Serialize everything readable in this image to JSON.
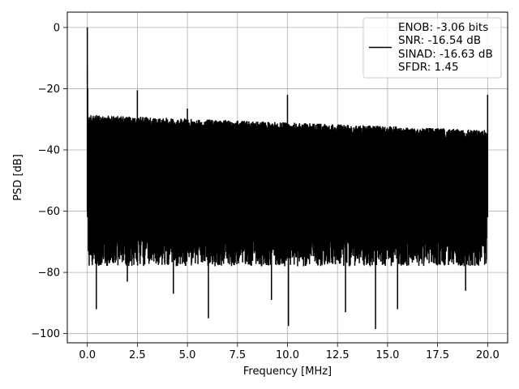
{
  "chart_data": {
    "type": "line",
    "xlabel": "Frequency [MHz]",
    "ylabel": "PSD [dB]",
    "xlim": [
      -1.0,
      21.0
    ],
    "ylim": [
      -103.0,
      5.0
    ],
    "grid": true,
    "legend_placement": "upper-right",
    "x_ticks": [
      0.0,
      2.5,
      5.0,
      7.5,
      10.0,
      12.5,
      15.0,
      17.5,
      20.0
    ],
    "x_tick_labels": [
      "0.0",
      "2.5",
      "5.0",
      "7.5",
      "10.0",
      "12.5",
      "15.0",
      "17.5",
      "20.0"
    ],
    "y_ticks": [
      0,
      -20,
      -40,
      -60,
      -80,
      -100
    ],
    "y_tick_labels": [
      "0",
      "−20",
      "−40",
      "−60",
      "−80",
      "−100"
    ],
    "series_color": "#000000",
    "series": [
      {
        "name": "",
        "noise_envelope": {
          "x_range": [
            0.0,
            20.0
          ],
          "upper_start": -28.5,
          "upper_end": -33.5,
          "lower_typical": -72.0
        },
        "spurs": [
          {
            "x": 0.0,
            "y": 0.0
          },
          {
            "x": 0.02,
            "y": -20.0
          },
          {
            "x": 2.5,
            "y": -20.5
          },
          {
            "x": 5.0,
            "y": -26.5
          },
          {
            "x": 10.0,
            "y": -22.0
          },
          {
            "x": 20.0,
            "y": -22.0
          }
        ],
        "notches": [
          {
            "x": 0.45,
            "y": -92.0
          },
          {
            "x": 2.0,
            "y": -83.0
          },
          {
            "x": 4.3,
            "y": -87.0
          },
          {
            "x": 6.05,
            "y": -95.0
          },
          {
            "x": 9.2,
            "y": -89.0
          },
          {
            "x": 10.05,
            "y": -97.5
          },
          {
            "x": 12.9,
            "y": -93.0
          },
          {
            "x": 14.4,
            "y": -98.5
          },
          {
            "x": 15.5,
            "y": -92.0
          },
          {
            "x": 18.9,
            "y": -86.0
          }
        ]
      }
    ],
    "legend": {
      "lines": [
        "ENOB: -3.06 bits",
        "SNR: -16.54 dB",
        "SINAD: -16.63 dB",
        "SFDR: 1.45"
      ]
    }
  }
}
